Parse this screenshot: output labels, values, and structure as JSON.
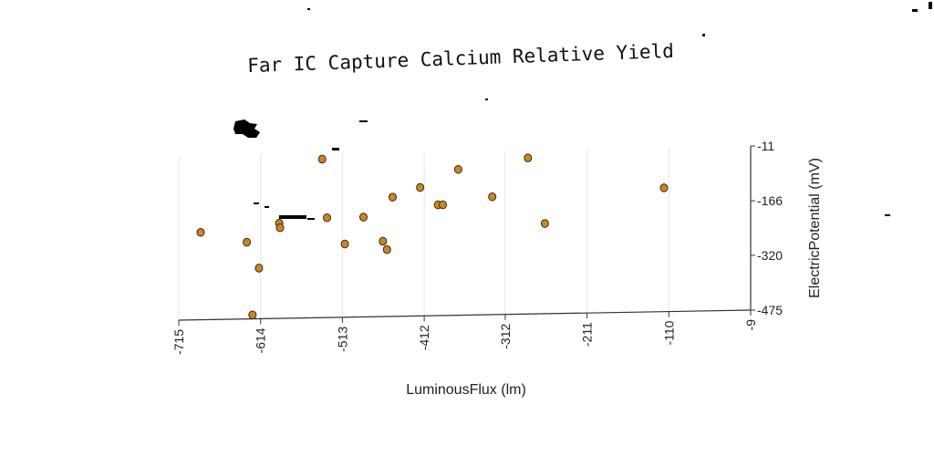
{
  "chart_data": {
    "type": "scatter",
    "title": "Far IC Capture Calcium Relative Yield",
    "xlabel": "LuminousFlux (lm)",
    "ylabel": "ElectricPotential (mV)",
    "xlim": [
      -715,
      -9
    ],
    "ylim": [
      -475,
      -11
    ],
    "x_ticks": [
      -715,
      -614,
      -513,
      -412,
      -312,
      -211,
      -110,
      -9
    ],
    "y_ticks": [
      -11,
      -166,
      -320,
      -475
    ],
    "x_tick_labels": [
      "-715",
      "-614",
      "-513",
      "-412",
      "-312",
      "-211",
      "-110",
      "-9"
    ],
    "y_tick_labels": [
      "-11",
      "-166",
      "-320",
      "-475"
    ],
    "grid": true,
    "legend": "none",
    "point_color": "#c8862a",
    "series": [
      {
        "x": [
          -688,
          -631,
          -624,
          -616,
          -591,
          -590,
          -538,
          -532,
          -510,
          -487,
          -463,
          -458,
          -451,
          -417,
          -395,
          -389,
          -370,
          -328,
          -284,
          -263,
          -116
        ],
        "y": [
          -228,
          -258,
          -464,
          -332,
          -206,
          -219,
          -27,
          -193,
          -268,
          -193,
          -262,
          -286,
          -138,
          -112,
          -162,
          -162,
          -63,
          -142,
          -34,
          -220,
          -125
        ]
      }
    ]
  }
}
